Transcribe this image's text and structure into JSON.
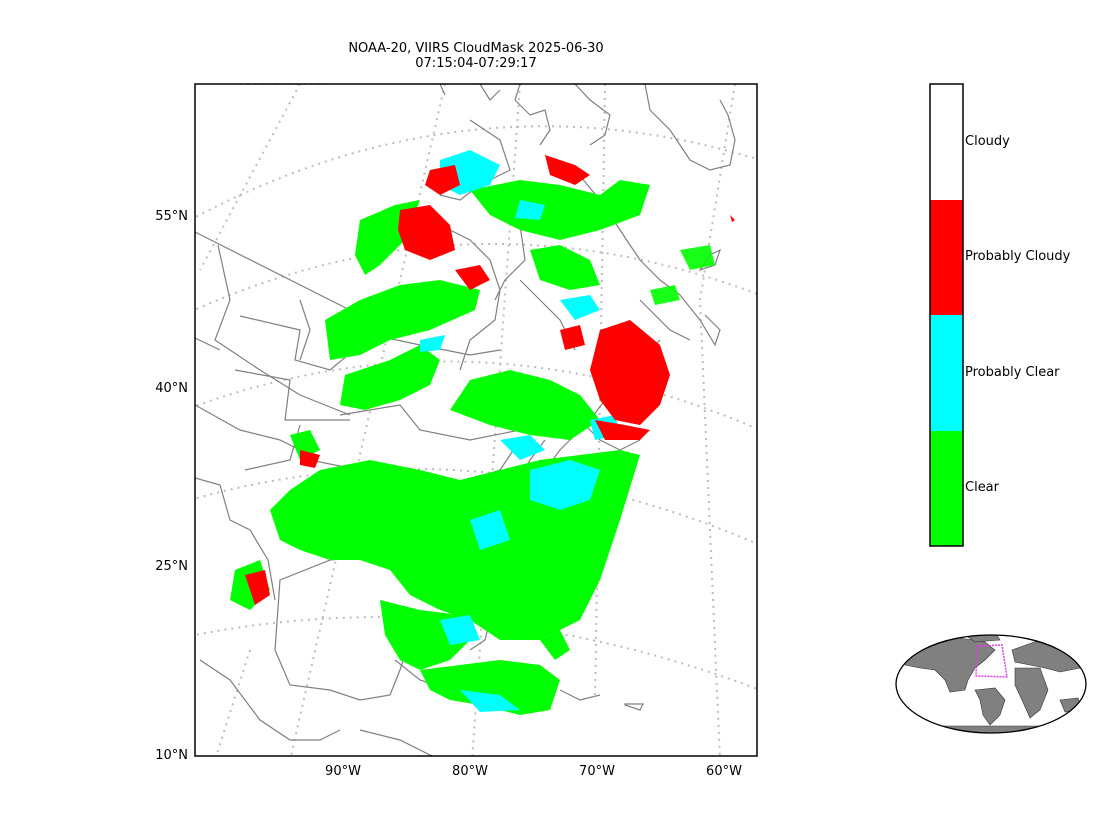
{
  "title": {
    "line1": "NOAA-20, VIIRS CloudMask 2025-06-30",
    "line2": "07:15:04-07:29:17"
  },
  "map": {
    "projection": "conic",
    "lat_labels": [
      "55°N",
      "40°N",
      "25°N",
      "10°N"
    ],
    "lon_labels": [
      "90°W",
      "80°W",
      "70°W",
      "60°W"
    ],
    "graticule_style": "dotted-gray",
    "coastline_color": "#808080",
    "swath_description_colors": {
      "clear": "#00ff00",
      "probably_clear": "#00ffff",
      "probably_cloudy": "#ff0000",
      "cloudy": "#ffffff"
    }
  },
  "colorbar": {
    "categories": [
      {
        "label": "Cloudy",
        "color": "#ffffff"
      },
      {
        "label": "Probably Cloudy",
        "color": "#ff0000"
      },
      {
        "label": "Probably Clear",
        "color": "#00ffff"
      },
      {
        "label": "Clear",
        "color": "#00ff00"
      }
    ]
  },
  "inset": {
    "type": "world-locator",
    "land_color": "#808080",
    "highlight_color": "#e040e0"
  }
}
